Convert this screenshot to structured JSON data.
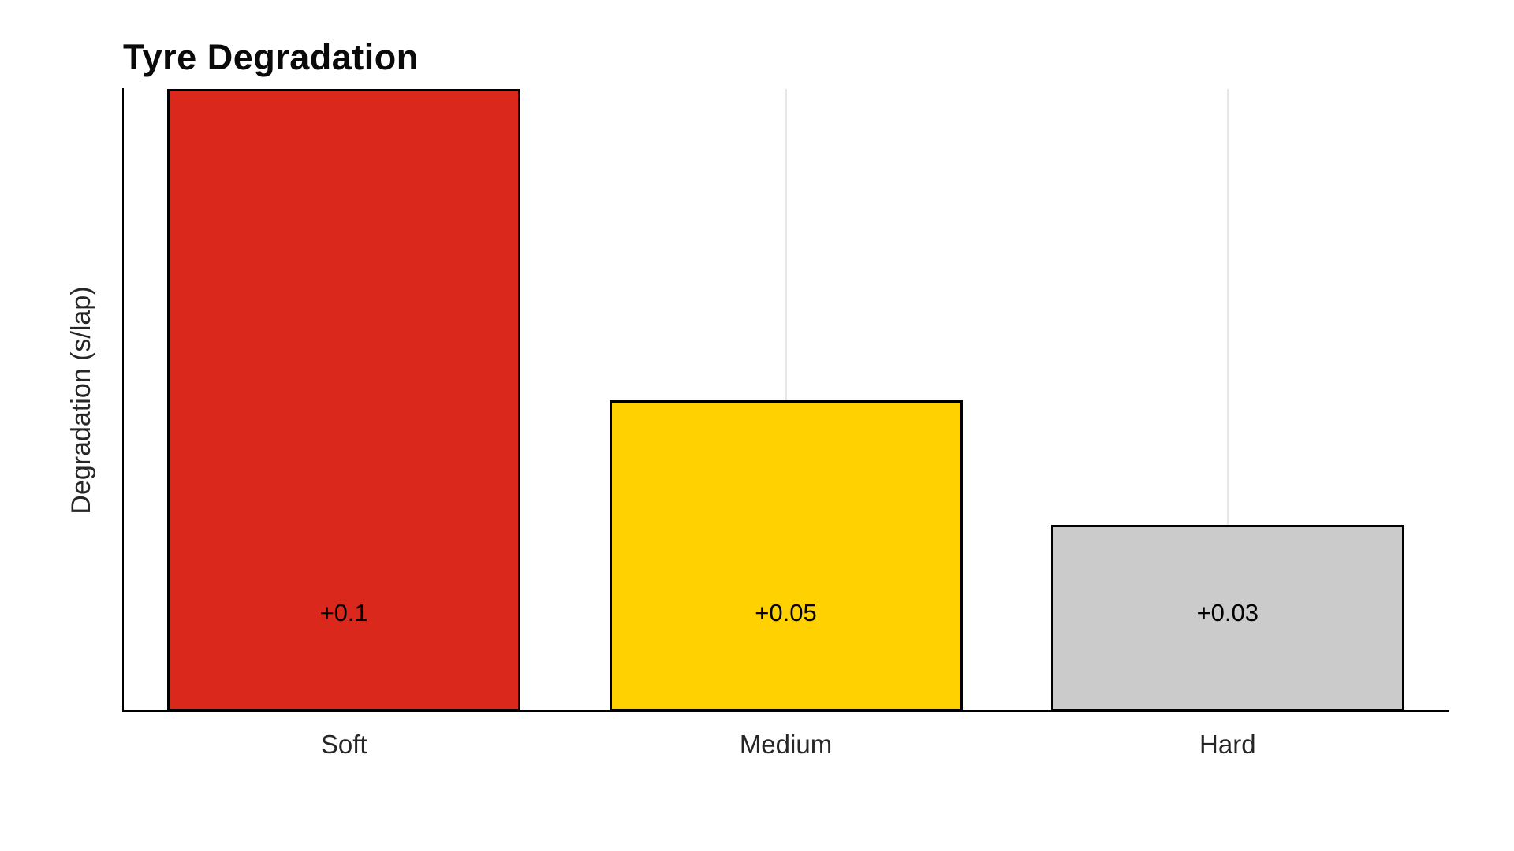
{
  "page": {
    "background_color": "#ffffff"
  },
  "chart_data": {
    "type": "bar",
    "title": "Tyre Degradation",
    "ylabel": "Degradation (s/lap)",
    "xlabel": "",
    "categories": [
      "Soft",
      "Medium",
      "Hard"
    ],
    "values": [
      0.1,
      0.05,
      0.03
    ],
    "bar_labels": [
      "+0.1",
      "+0.05",
      "+0.03"
    ],
    "bar_colors": [
      "#da291c",
      "#ffd100",
      "#cbcbcb"
    ],
    "bar_edge_color": "#000000",
    "axis_color": "#000000",
    "gridline_color": "#e7e7e7",
    "grid": "vertical-faint-at-bar-centers",
    "ylim": [
      0,
      0.1
    ],
    "legend": "none",
    "yticks": [],
    "title_color": "#0a0a0a",
    "tick_label_color": "#262626"
  }
}
